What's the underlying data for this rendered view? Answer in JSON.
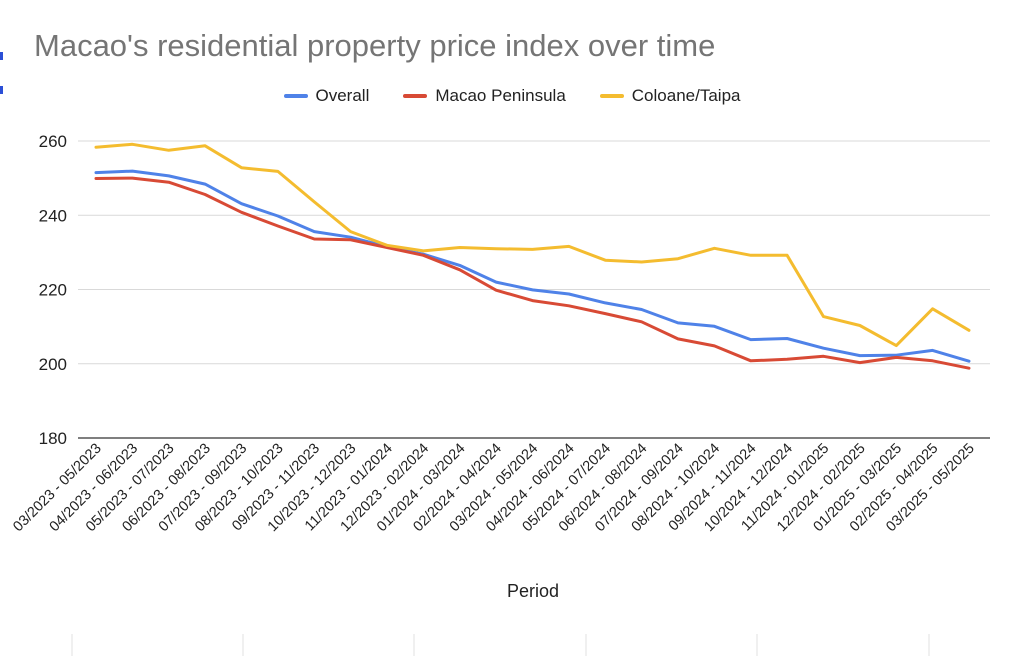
{
  "chart_data": {
    "type": "line",
    "title": "Macao's residential property price index over time",
    "xlabel": "Period",
    "ylabel": "",
    "ylim": [
      180,
      260
    ],
    "yticks": [
      180,
      200,
      220,
      240,
      260
    ],
    "legend_position": "top-center",
    "grid": true,
    "categories": [
      "03/2023 - 05/2023",
      "04/2023 - 06/2023",
      "05/2023 - 07/2023",
      "06/2023 - 08/2023",
      "07/2023 - 09/2023",
      "08/2023 - 10/2023",
      "09/2023 - 11/2023",
      "10/2023 - 12/2023",
      "11/2023 - 01/2024",
      "12/2023 - 02/2024",
      "01/2024 - 03/2024",
      "02/2024 - 04/2024",
      "03/2024 - 05/2024",
      "04/2024 - 06/2024",
      "05/2024 - 07/2024",
      "06/2024 - 08/2024",
      "07/2024 - 09/2024",
      "08/2024 - 10/2024",
      "09/2024 - 11/2024",
      "10/2024 - 12/2024",
      "11/2024 - 01/2025",
      "12/2024 - 02/2025",
      "01/2025 - 03/2025",
      "02/2025 - 04/2025",
      "03/2025 - 05/2025"
    ],
    "series": [
      {
        "name": "Overall",
        "color": "#4f82e8",
        "values": [
          251.5,
          251.9,
          250.6,
          248.4,
          243.1,
          239.8,
          235.6,
          234.1,
          231.5,
          229.5,
          226.5,
          222.0,
          219.9,
          218.8,
          216.4,
          214.6,
          211.0,
          210.1,
          206.5,
          206.8,
          204.2,
          202.2,
          202.3,
          203.6,
          200.7
        ]
      },
      {
        "name": "Macao Peninsula",
        "color": "#d84a35",
        "values": [
          249.9,
          250.0,
          248.9,
          245.6,
          240.8,
          237.1,
          233.6,
          233.4,
          231.3,
          229.2,
          225.3,
          219.8,
          217.0,
          215.6,
          213.5,
          211.3,
          206.7,
          204.8,
          200.8,
          201.2,
          202.0,
          200.3,
          201.7,
          200.8,
          198.8
        ]
      },
      {
        "name": "Coloane/Taipa",
        "color": "#f4bc2f",
        "values": [
          258.3,
          259.1,
          257.5,
          258.7,
          252.8,
          251.8,
          243.6,
          235.6,
          231.9,
          230.4,
          231.3,
          231.0,
          230.8,
          231.6,
          227.9,
          227.4,
          228.3,
          231.1,
          229.2,
          229.2,
          212.7,
          210.3,
          204.9,
          214.8,
          209.0
        ]
      }
    ]
  }
}
